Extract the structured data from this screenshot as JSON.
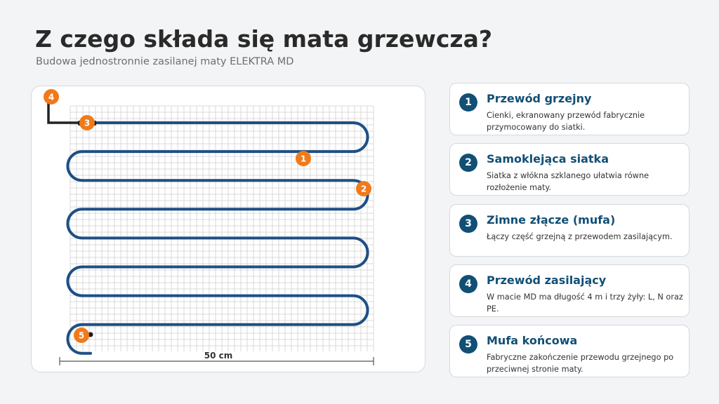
{
  "page": {
    "title": "Z czego składa się mata grzewcza?",
    "subtitle": "Budowa jednostronnie zasilanej maty ELEKTRA MD"
  },
  "diagram": {
    "width_label": "50 cm",
    "markers": [
      "1",
      "2",
      "3",
      "4",
      "5"
    ],
    "colors": {
      "cable": "#1d4f85",
      "marker": "#f07a1a",
      "grid": "#cfcfcf",
      "power_cable": "#222222"
    }
  },
  "legend": [
    {
      "number": "1",
      "title": "Przewód grzejny",
      "description": "Cienki, ekranowany przewód fabrycznie przymocowany do siatki."
    },
    {
      "number": "2",
      "title": "Samoklejąca siatka",
      "description": "Siatka z włókna szklanego ułatwia równe rozłożenie maty."
    },
    {
      "number": "3",
      "title": "Zimne złącze (mufa)",
      "description": "Łączy część grzejną z przewodem zasilającym."
    },
    {
      "number": "4",
      "title": "Przewód zasilający",
      "description": "W macie MD ma długość 4 m i trzy żyły: L, N oraz PE."
    },
    {
      "number": "5",
      "title": "Mufa końcowa",
      "description": "Fabryczne zakończenie przewodu grzejnego po przeciwnej stronie maty."
    }
  ]
}
